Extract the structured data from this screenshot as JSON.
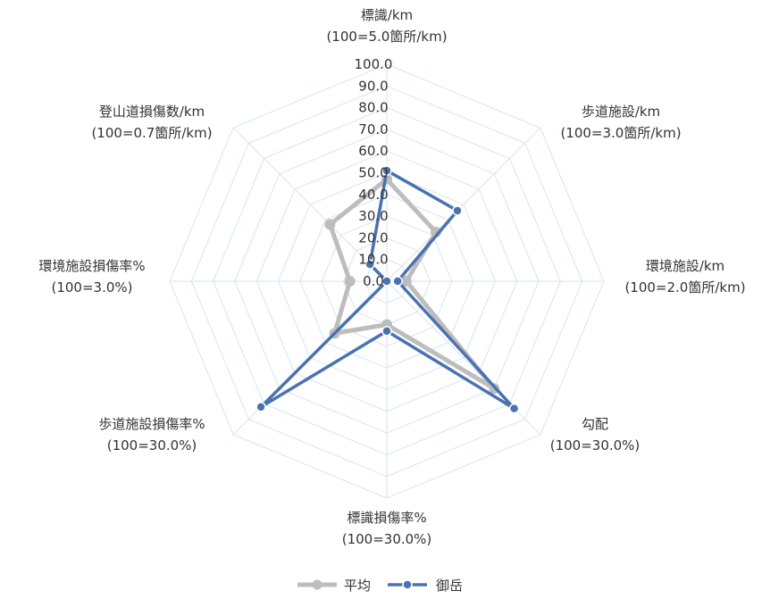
{
  "chart_data": {
    "type": "radar",
    "axes": [
      {
        "name": "標識/km",
        "scale": "(100=5.0箇所/km)"
      },
      {
        "name": "歩道施設/km",
        "scale": "(100=3.0箇所/km)"
      },
      {
        "name": "環境施設/km",
        "scale": "(100=2.0箇所/km)"
      },
      {
        "name": "勾配",
        "scale": "(100=30.0%)"
      },
      {
        "name": "標識損傷率%",
        "scale": "(100=30.0%)"
      },
      {
        "name": "歩道施設損傷率%",
        "scale": "(100=30.0%)"
      },
      {
        "name": "環境施設損傷率%",
        "scale": "(100=3.0%)"
      },
      {
        "name": "登山道損傷数/km",
        "scale": "(100=0.7箇所/km)"
      }
    ],
    "ticks": [
      "0.0",
      "10.0",
      "20.0",
      "30.0",
      "40.0",
      "50.0",
      "60.0",
      "70.0",
      "80.0",
      "90.0",
      "100.0"
    ],
    "range": [
      0,
      100
    ],
    "series": [
      {
        "name": "平均",
        "color": "#BDBDBD",
        "values": [
          47,
          32,
          9,
          70,
          20,
          34,
          17,
          37
        ]
      },
      {
        "name": "御岳",
        "color": "#4A72B0",
        "values": [
          51,
          46,
          5,
          83,
          23,
          82,
          0,
          11
        ]
      }
    ],
    "gridline_color": "#D6E3F3",
    "legend_position": "bottom"
  }
}
